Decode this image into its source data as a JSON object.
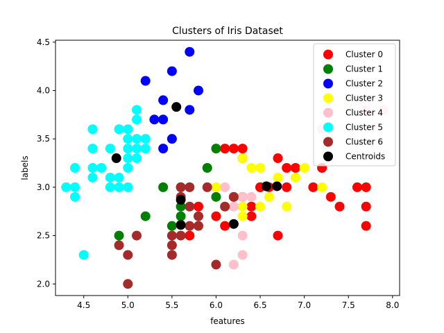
{
  "chart_data": {
    "type": "scatter",
    "title": "Clusters of Iris Dataset",
    "xlabel": "features",
    "ylabel": "labels",
    "xlim": [
      4.18,
      8.08
    ],
    "ylim": [
      1.88,
      4.52
    ],
    "xticks": [
      "4.5",
      "5.0",
      "5.5",
      "6.0",
      "6.5",
      "7.0",
      "7.5",
      "8.0"
    ],
    "yticks": [
      "2.0",
      "2.5",
      "3.0",
      "3.5",
      "4.0",
      "4.5"
    ],
    "grid": false,
    "legend_position": "top-right",
    "series": [
      {
        "name": "Cluster 0",
        "color": "#ff0000",
        "points": [
          [
            6.1,
            3.4
          ],
          [
            6.2,
            3.4
          ],
          [
            6.3,
            3.4
          ],
          [
            6.3,
            3.3
          ],
          [
            6.7,
            3.3
          ],
          [
            6.8,
            3.2
          ],
          [
            6.9,
            3.2
          ],
          [
            7.2,
            3.2
          ],
          [
            6.6,
            3.0
          ],
          [
            6.5,
            3.0
          ],
          [
            6.8,
            3.0
          ],
          [
            7.1,
            3.0
          ],
          [
            7.6,
            3.0
          ],
          [
            7.7,
            3.0
          ],
          [
            6.4,
            2.8
          ],
          [
            6.2,
            2.9
          ],
          [
            6.4,
            2.7
          ],
          [
            6.0,
            2.7
          ],
          [
            6.7,
            2.5
          ],
          [
            5.7,
            2.5
          ],
          [
            5.8,
            2.8
          ],
          [
            7.3,
            2.9
          ],
          [
            7.4,
            2.8
          ],
          [
            7.7,
            2.8
          ],
          [
            7.7,
            2.6
          ],
          [
            6.1,
            2.6
          ],
          [
            6.3,
            2.9
          ],
          [
            6.5,
            3.0
          ]
        ]
      },
      {
        "name": "Cluster 1",
        "color": "#008000",
        "points": [
          [
            6.0,
            3.4
          ],
          [
            5.9,
            3.2
          ],
          [
            5.4,
            3.0
          ],
          [
            6.0,
            2.9
          ],
          [
            5.6,
            2.8
          ],
          [
            5.6,
            2.7
          ],
          [
            5.2,
            2.7
          ],
          [
            5.5,
            2.6
          ],
          [
            4.9,
            2.5
          ],
          [
            5.6,
            3.0
          ]
        ]
      },
      {
        "name": "Cluster 2",
        "color": "#0000ff",
        "points": [
          [
            5.7,
            4.4
          ],
          [
            5.5,
            4.2
          ],
          [
            5.2,
            4.1
          ],
          [
            5.8,
            4.0
          ],
          [
            5.4,
            3.9
          ],
          [
            5.4,
            3.7
          ],
          [
            5.3,
            3.7
          ],
          [
            5.7,
            3.8
          ],
          [
            5.5,
            3.5
          ],
          [
            5.4,
            3.4
          ]
        ]
      },
      {
        "name": "Cluster 3",
        "color": "#ffff00",
        "points": [
          [
            6.3,
            3.3
          ],
          [
            6.4,
            3.2
          ],
          [
            6.5,
            3.2
          ],
          [
            6.7,
            3.1
          ],
          [
            6.9,
            3.1
          ],
          [
            7.0,
            3.2
          ],
          [
            6.0,
            3.0
          ],
          [
            7.2,
            3.0
          ],
          [
            6.5,
            2.8
          ],
          [
            6.3,
            2.8
          ],
          [
            6.6,
            2.9
          ],
          [
            6.8,
            2.8
          ],
          [
            6.3,
            2.7
          ]
        ]
      },
      {
        "name": "Cluster 4",
        "color": "#ffc0cb",
        "points": [
          [
            7.7,
            3.8
          ],
          [
            7.9,
            3.8
          ],
          [
            7.2,
            3.6
          ],
          [
            6.1,
            3.0
          ],
          [
            6.3,
            2.9
          ],
          [
            6.2,
            2.8
          ],
          [
            6.4,
            2.9
          ],
          [
            6.3,
            2.5
          ],
          [
            6.3,
            2.3
          ],
          [
            6.2,
            2.2
          ]
        ]
      },
      {
        "name": "Cluster 5",
        "color": "#00ffff",
        "points": [
          [
            4.6,
            3.6
          ],
          [
            5.0,
            3.6
          ],
          [
            4.9,
            3.6
          ],
          [
            5.1,
            3.8
          ],
          [
            5.1,
            3.7
          ],
          [
            4.6,
            3.4
          ],
          [
            4.8,
            3.4
          ],
          [
            5.0,
            3.5
          ],
          [
            5.0,
            3.4
          ],
          [
            5.1,
            3.5
          ],
          [
            5.2,
            3.5
          ],
          [
            5.0,
            3.3
          ],
          [
            5.1,
            3.3
          ],
          [
            5.2,
            3.4
          ],
          [
            5.1,
            3.4
          ],
          [
            4.6,
            3.2
          ],
          [
            4.7,
            3.2
          ],
          [
            4.4,
            3.2
          ],
          [
            4.6,
            3.1
          ],
          [
            4.8,
            3.1
          ],
          [
            4.9,
            3.1
          ],
          [
            5.0,
            3.2
          ],
          [
            4.3,
            3.0
          ],
          [
            4.4,
            3.0
          ],
          [
            4.8,
            3.0
          ],
          [
            4.9,
            3.0
          ],
          [
            5.0,
            3.0
          ],
          [
            4.4,
            2.9
          ],
          [
            4.5,
            2.3
          ]
        ]
      },
      {
        "name": "Cluster 6",
        "color": "#a52a2a",
        "points": [
          [
            5.6,
            3.0
          ],
          [
            5.7,
            3.0
          ],
          [
            5.9,
            3.0
          ],
          [
            5.6,
            2.9
          ],
          [
            5.7,
            2.8
          ],
          [
            5.8,
            2.7
          ],
          [
            5.7,
            2.6
          ],
          [
            5.8,
            2.6
          ],
          [
            5.6,
            2.5
          ],
          [
            5.5,
            2.5
          ],
          [
            5.5,
            2.4
          ],
          [
            5.5,
            2.3
          ],
          [
            5.1,
            2.5
          ],
          [
            4.9,
            2.4
          ],
          [
            5.0,
            2.3
          ],
          [
            5.0,
            2.0
          ],
          [
            6.0,
            2.2
          ],
          [
            6.1,
            2.8
          ],
          [
            6.2,
            2.9
          ]
        ]
      },
      {
        "name": "Centroids",
        "color": "#000000",
        "points": [
          [
            4.87,
            3.3
          ],
          [
            5.55,
            3.83
          ],
          [
            5.6,
            2.87
          ],
          [
            5.6,
            2.61
          ],
          [
            6.2,
            2.62
          ],
          [
            6.57,
            3.01
          ],
          [
            6.69,
            3.01
          ]
        ]
      }
    ]
  }
}
